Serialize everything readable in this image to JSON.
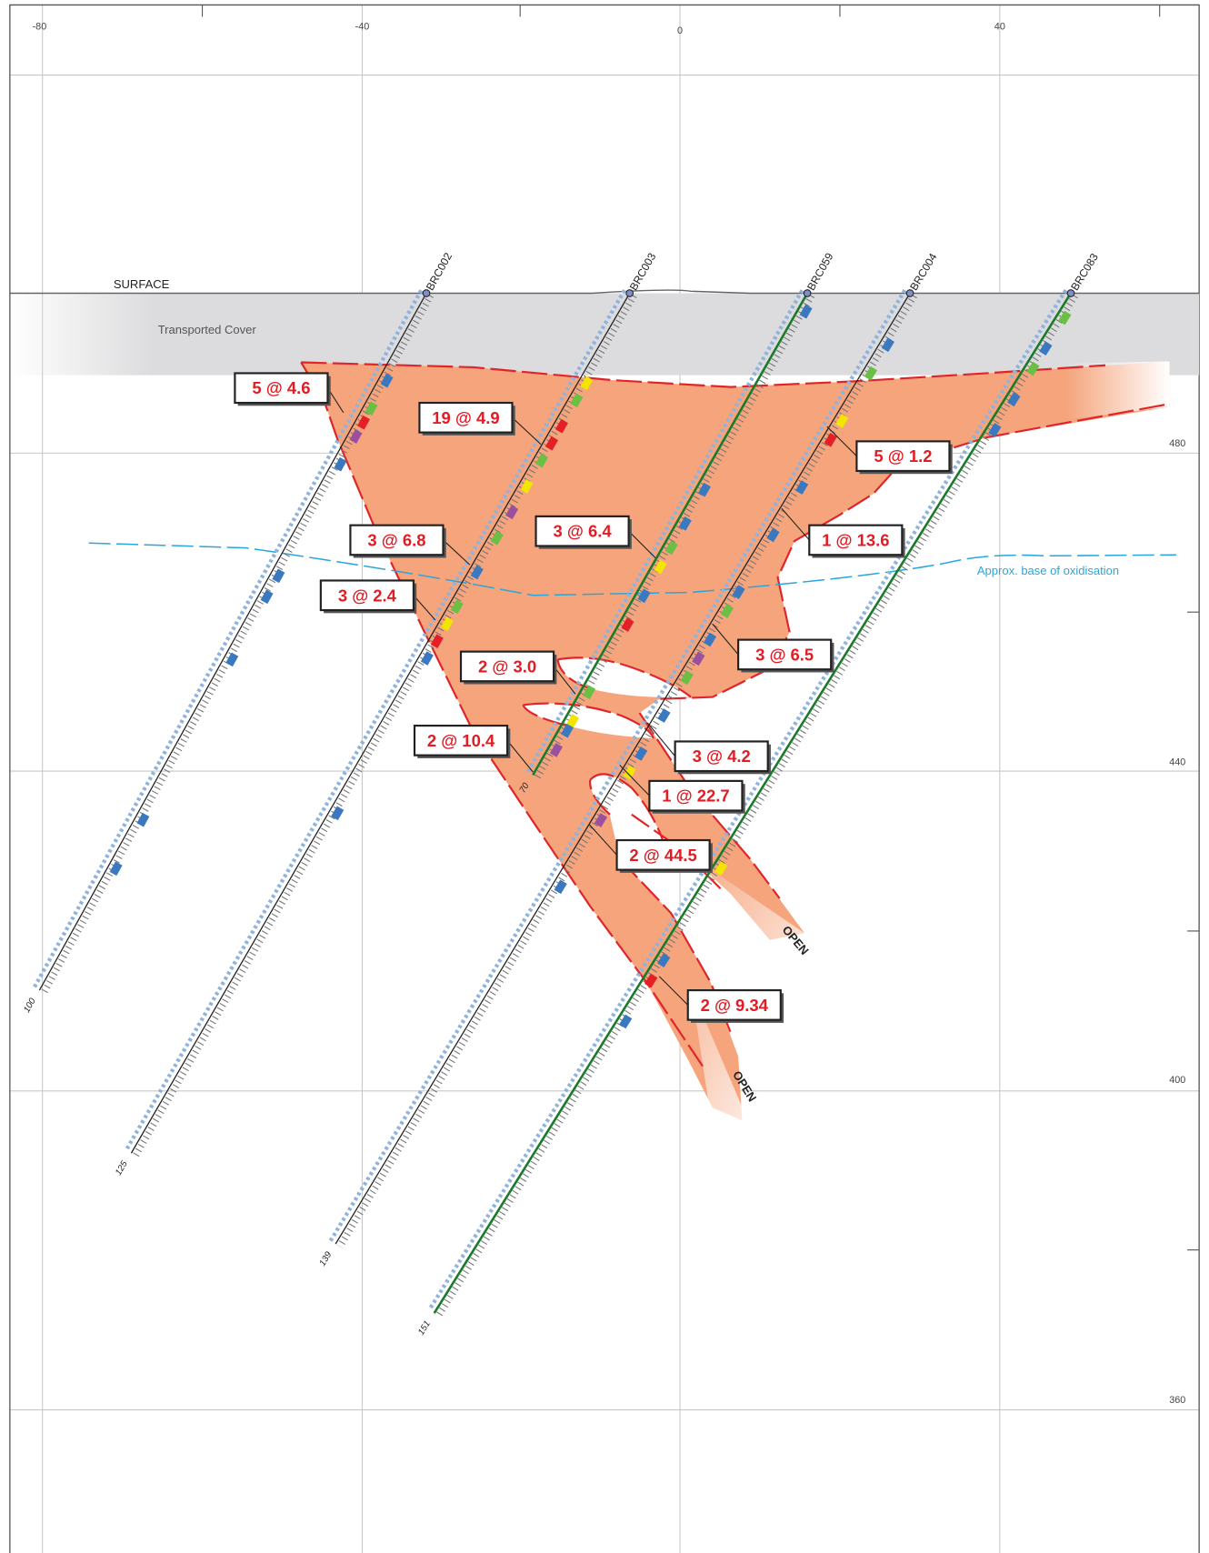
{
  "axis": {
    "x_labels": [
      "-80",
      "-40",
      "0",
      "40"
    ],
    "y_labels": [
      "480",
      "440",
      "400",
      "360"
    ]
  },
  "labels": {
    "surface": "SURFACE",
    "cover": "Transported Cover",
    "oxidation": "Approx. base of oxidisation",
    "open": [
      "OPEN",
      "OPEN"
    ]
  },
  "drillholes": [
    {
      "name": "BRC002",
      "depth": "100"
    },
    {
      "name": "BRC003",
      "depth": "125"
    },
    {
      "name": "BRC059",
      "depth": "70"
    },
    {
      "name": "BRC004",
      "depth": "139"
    },
    {
      "name": "BRC083",
      "depth": "151"
    }
  ],
  "intercepts": [
    "5 @ 4.6",
    "19 @ 4.9",
    "5 @ 1.2",
    "3 @ 6.8",
    "3 @ 6.4",
    "1 @ 13.6",
    "3 @ 2.4",
    "3 @ 6.5",
    "2 @ 3.0",
    "2 @ 10.4",
    "3 @ 4.2",
    "1 @ 22.7",
    "2 @ 44.5",
    "2 @ 9.34"
  ]
}
